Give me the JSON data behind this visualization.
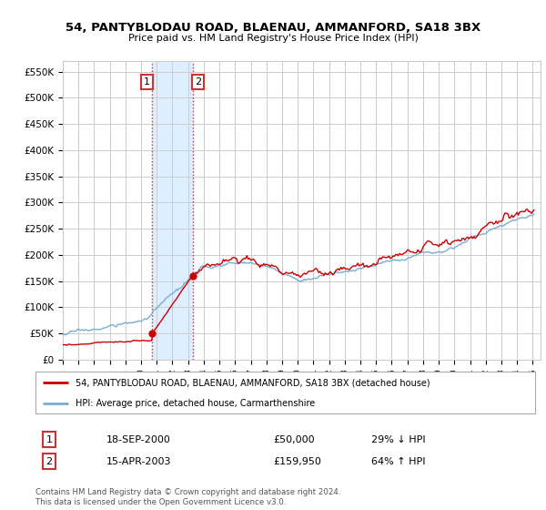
{
  "title": "54, PANTYBLODAU ROAD, BLAENAU, AMMANFORD, SA18 3BX",
  "subtitle": "Price paid vs. HM Land Registry's House Price Index (HPI)",
  "ylabel_ticks": [
    "£0",
    "£50K",
    "£100K",
    "£150K",
    "£200K",
    "£250K",
    "£300K",
    "£350K",
    "£400K",
    "£450K",
    "£500K",
    "£550K"
  ],
  "ytick_values": [
    0,
    50000,
    100000,
    150000,
    200000,
    250000,
    300000,
    350000,
    400000,
    450000,
    500000,
    550000
  ],
  "ylim": [
    0,
    570000
  ],
  "xlim_start": 1995.0,
  "xlim_end": 2025.5,
  "purchase1_year": 2000,
  "purchase1_month": 9,
  "purchase1_price": 50000,
  "purchase2_year": 2003,
  "purchase2_month": 4,
  "purchase2_price": 159950,
  "legend_label_red": "54, PANTYBLODAU ROAD, BLAENAU, AMMANFORD, SA18 3BX (detached house)",
  "legend_label_blue": "HPI: Average price, detached house, Carmarthenshire",
  "purchase1_text": "18-SEP-2000",
  "purchase1_price_text": "£50,000",
  "purchase1_hpi_text": "29% ↓ HPI",
  "purchase2_text": "15-APR-2003",
  "purchase2_price_text": "£159,950",
  "purchase2_hpi_text": "64% ↑ HPI",
  "footer_text": "Contains HM Land Registry data © Crown copyright and database right 2024.\nThis data is licensed under the Open Government Licence v3.0.",
  "red_color": "#cc0000",
  "blue_color": "#7aadd4",
  "highlight_color": "#ddeeff",
  "background_color": "#ffffff",
  "grid_color": "#cccccc"
}
